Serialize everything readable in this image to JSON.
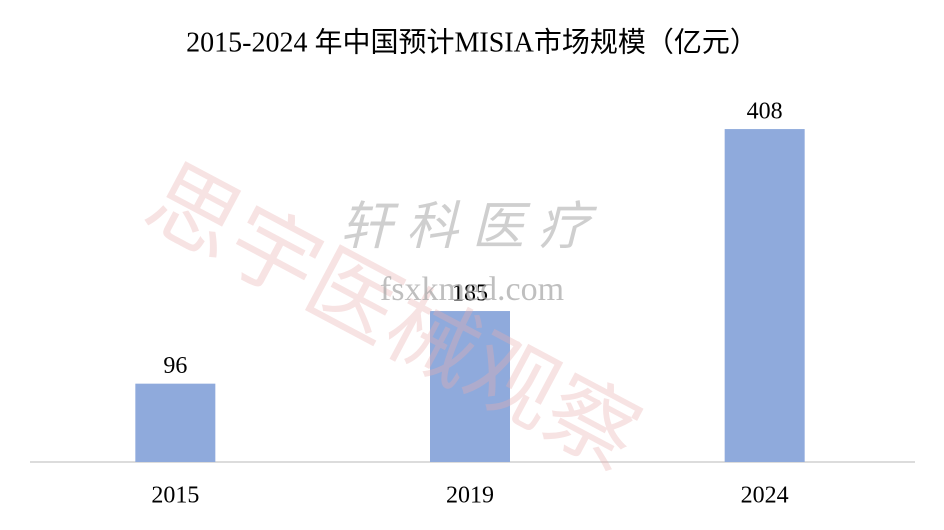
{
  "chart_data": {
    "type": "bar",
    "title": "2015-2024 年中国预计MISIA市场规模（亿元）",
    "categories": [
      "2015",
      "2019",
      "2024"
    ],
    "values": [
      96,
      185,
      408
    ],
    "color": "#8faadc"
  },
  "watermarks": [
    "思宇医械观察",
    "轩科医疗",
    "fsxkmed.com"
  ]
}
